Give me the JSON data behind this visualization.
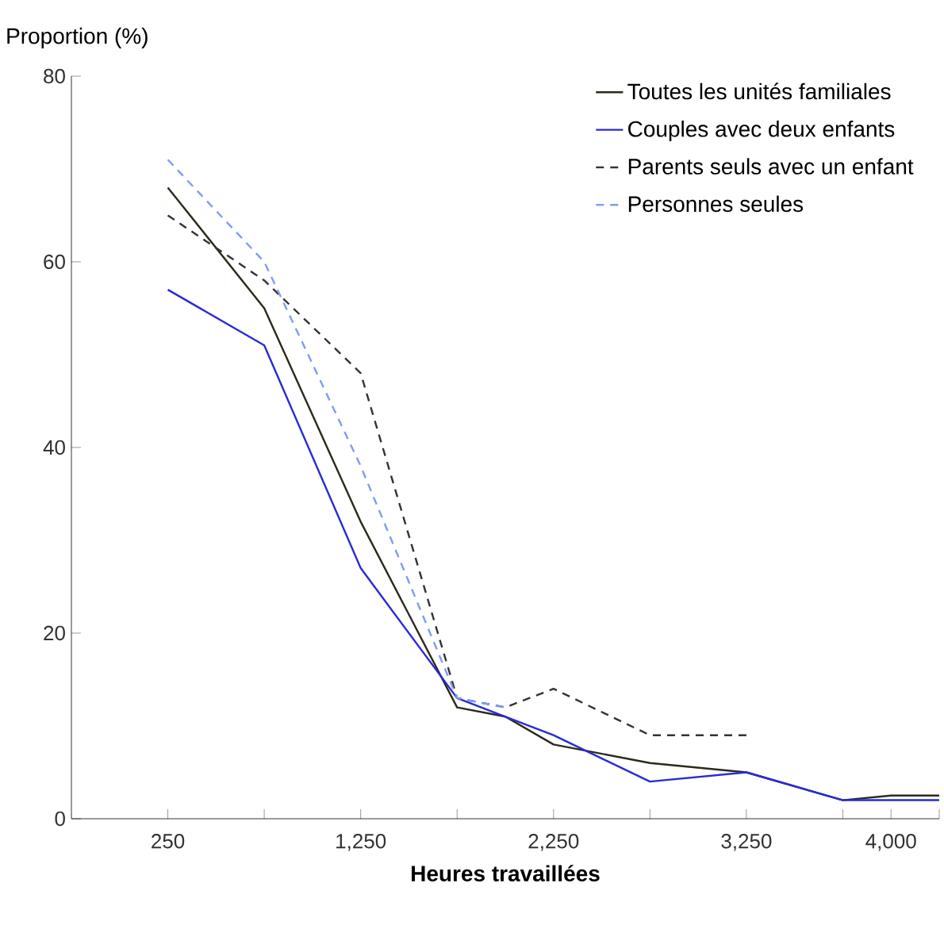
{
  "chart_data": {
    "type": "line",
    "ylabel": "Proportion (%)",
    "xlabel": "Heures travaillées",
    "x": [
      250,
      750,
      1250,
      1750,
      2000,
      2250,
      2750,
      3250,
      3750,
      4000,
      4250
    ],
    "series": [
      {
        "name": "Toutes les unités familiales",
        "color": "#2b2b1a",
        "line_style": "solid",
        "values": [
          68,
          55,
          32,
          12,
          11,
          8,
          6,
          5,
          2,
          2.5,
          2.5
        ]
      },
      {
        "name": "Couples avec deux enfants",
        "color": "#2a2ad8",
        "line_style": "solid",
        "values": [
          57,
          51,
          27,
          13,
          11,
          9,
          4,
          5,
          2,
          2,
          2
        ]
      },
      {
        "name": "Parents seuls avec un enfant",
        "color": "#333333",
        "line_style": "dashed",
        "values": [
          65,
          58,
          48,
          13,
          12,
          14,
          9,
          9,
          null,
          null,
          null
        ]
      },
      {
        "name": "Personnes seules",
        "color": "#7f9cf5",
        "line_style": "dashed",
        "values": [
          71,
          60,
          38,
          13,
          12,
          null,
          null,
          null,
          null,
          null,
          null
        ]
      }
    ],
    "xlim": [
      -250,
      4250
    ],
    "ylim": [
      0,
      80
    ],
    "xticks": [
      {
        "value": 250,
        "label": "250"
      },
      {
        "value": 750,
        "label": null
      },
      {
        "value": 1250,
        "label": "1,250"
      },
      {
        "value": 1750,
        "label": null
      },
      {
        "value": 2250,
        "label": "2,250"
      },
      {
        "value": 2750,
        "label": null
      },
      {
        "value": 3250,
        "label": "3,250"
      },
      {
        "value": 3750,
        "label": null
      },
      {
        "value": 4000,
        "label": "4,000"
      },
      {
        "value": 4250,
        "label": null
      }
    ],
    "yticks": [
      0,
      20,
      40,
      60,
      80
    ],
    "grid": false,
    "legend": "top right",
    "marker": "none"
  }
}
